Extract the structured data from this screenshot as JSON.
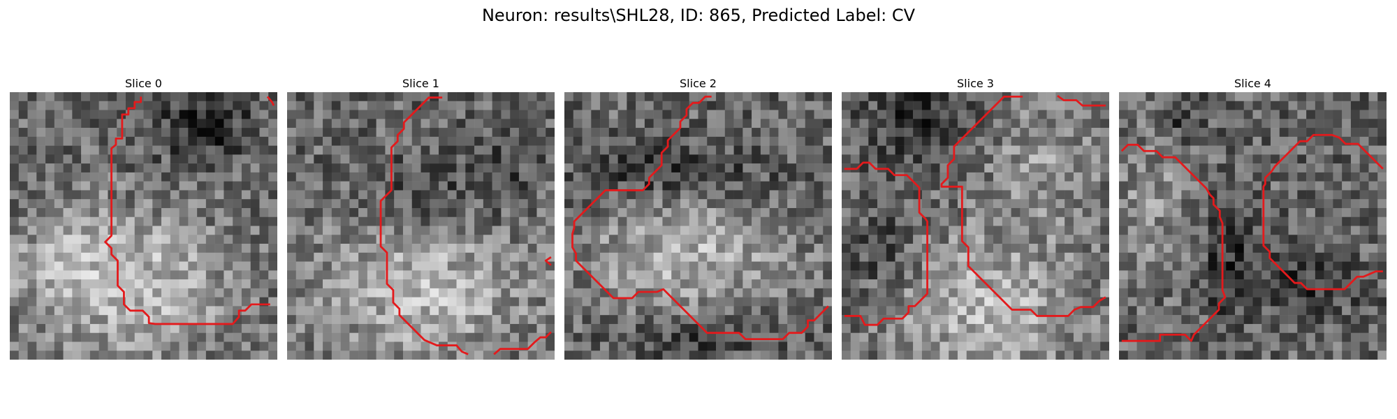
{
  "figure": {
    "title": "Neuron: results\\SHL28, ID: 865, Predicted Label: CV"
  },
  "panels": [
    {
      "title": "Slice 0",
      "bright_blobs": [
        [
          0.45,
          0.72,
          0.4,
          0.27,
          0.62
        ],
        [
          0.15,
          0.55,
          0.2,
          0.2,
          0.3
        ]
      ],
      "dark_blobs": [
        [
          0.72,
          0.12,
          0.18,
          0.14,
          0.55
        ],
        [
          0.05,
          0.45,
          0.12,
          0.12,
          0.35
        ]
      ]
    },
    {
      "title": "Slice 1",
      "bright_blobs": [
        [
          0.5,
          0.75,
          0.42,
          0.27,
          0.58
        ]
      ],
      "dark_blobs": [
        [
          0.5,
          0.38,
          0.18,
          0.12,
          0.35
        ],
        [
          0.8,
          0.3,
          0.12,
          0.16,
          0.3
        ]
      ]
    },
    {
      "title": "Slice 2",
      "bright_blobs": [
        [
          0.45,
          0.62,
          0.38,
          0.22,
          0.55
        ]
      ],
      "dark_blobs": [
        [
          0.4,
          0.3,
          0.35,
          0.1,
          0.45
        ],
        [
          0.5,
          0.92,
          0.3,
          0.07,
          0.4
        ]
      ]
    },
    {
      "title": "Slice 3",
      "bright_blobs": [
        [
          0.55,
          0.8,
          0.38,
          0.3,
          0.55
        ],
        [
          0.75,
          0.25,
          0.22,
          0.22,
          0.35
        ]
      ],
      "dark_blobs": [
        [
          0.3,
          0.1,
          0.2,
          0.2,
          0.45
        ],
        [
          0.15,
          0.6,
          0.15,
          0.15,
          0.35
        ]
      ]
    },
    {
      "title": "Slice 4",
      "bright_blobs": [
        [
          0.12,
          0.4,
          0.16,
          0.28,
          0.3
        ]
      ],
      "dark_blobs": [
        [
          0.42,
          0.62,
          0.12,
          0.22,
          0.45
        ],
        [
          0.22,
          0.1,
          0.1,
          0.1,
          0.4
        ],
        [
          0.7,
          0.72,
          0.22,
          0.1,
          0.4
        ]
      ]
    }
  ],
  "palette": {
    "background": "#ffffff",
    "contour": "#e31a1c"
  }
}
